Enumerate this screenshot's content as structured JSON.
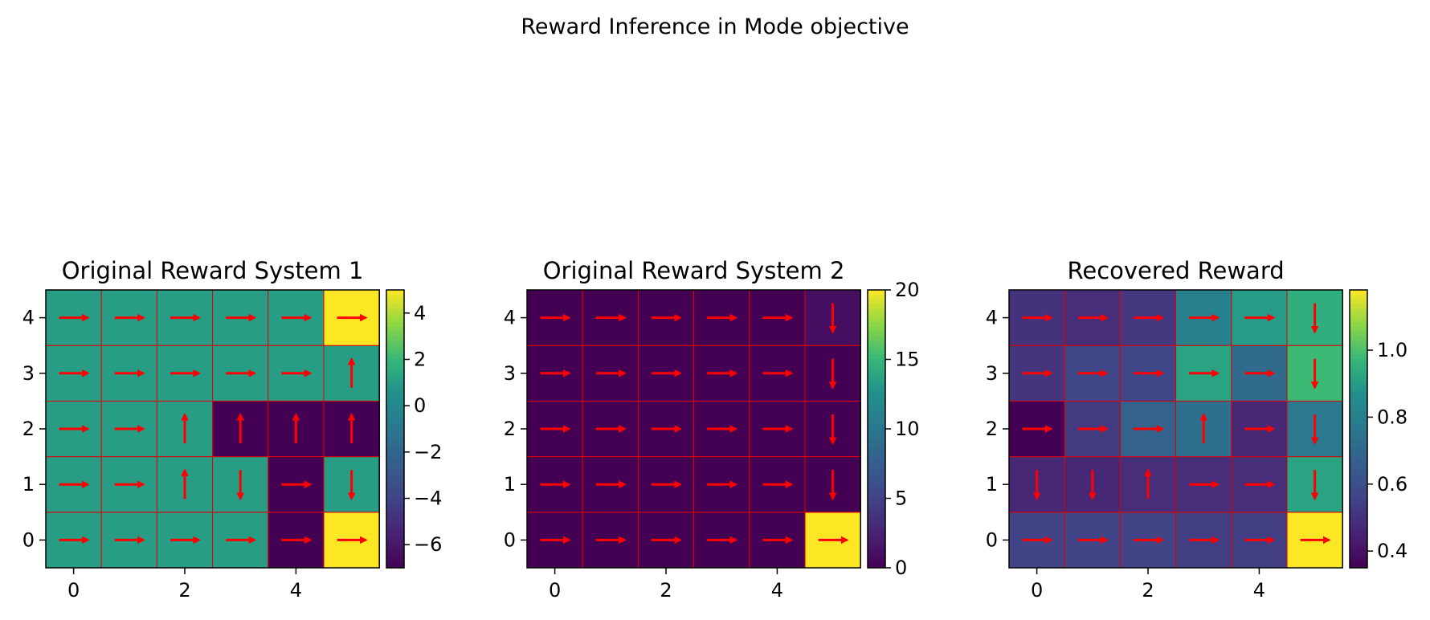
{
  "figure": {
    "suptitle": "Reward Inference in Mode objective"
  },
  "colors": {
    "arrow": "#ff0000",
    "grid_lines": "#e00000",
    "colormap": "viridis"
  },
  "chart_data": [
    {
      "type": "heatmap",
      "title": "Original Reward System 1",
      "x_ticks": [
        0,
        2,
        4
      ],
      "y_ticks": [
        0,
        1,
        2,
        3,
        4
      ],
      "xlim": [
        -0.5,
        5.5
      ],
      "ylim": [
        -0.5,
        4.5
      ],
      "rows": 5,
      "cols": 6,
      "values": [
        [
          1,
          1,
          1,
          1,
          -7,
          5
        ],
        [
          1,
          1,
          1,
          1,
          -7,
          1
        ],
        [
          1,
          1,
          1,
          -7,
          -7,
          -7
        ],
        [
          1,
          1,
          1,
          1,
          1,
          1
        ],
        [
          1,
          1,
          1,
          1,
          1,
          5
        ]
      ],
      "policy": [
        [
          "right",
          "right",
          "right",
          "right",
          "right",
          "right"
        ],
        [
          "right",
          "right",
          "up",
          "down",
          "right",
          "down"
        ],
        [
          "right",
          "right",
          "up",
          "up",
          "up",
          "up"
        ],
        [
          "right",
          "right",
          "right",
          "right",
          "right",
          "up"
        ],
        [
          "right",
          "right",
          "right",
          "right",
          "right",
          "right"
        ]
      ],
      "vmin": -7,
      "vmax": 5,
      "colorbar_ticks": [
        4,
        2,
        0,
        -2,
        -4,
        -6
      ],
      "colorbar_tick_labels": [
        "4",
        "2",
        "0",
        "−2",
        "−4",
        "−6"
      ]
    },
    {
      "type": "heatmap",
      "title": "Original Reward System 2",
      "x_ticks": [
        0,
        2,
        4
      ],
      "y_ticks": [
        0,
        1,
        2,
        3,
        4
      ],
      "xlim": [
        -0.5,
        5.5
      ],
      "ylim": [
        -0.5,
        4.5
      ],
      "rows": 5,
      "cols": 6,
      "values": [
        [
          0,
          0,
          0,
          0,
          0,
          20
        ],
        [
          0,
          0,
          0,
          0,
          0,
          0
        ],
        [
          0,
          0,
          0,
          0,
          0,
          0
        ],
        [
          0,
          0,
          0,
          0,
          0,
          0
        ],
        [
          0,
          0,
          0,
          0,
          0,
          1
        ]
      ],
      "policy": [
        [
          "right",
          "right",
          "right",
          "right",
          "right",
          "right"
        ],
        [
          "right",
          "right",
          "right",
          "right",
          "right",
          "down"
        ],
        [
          "right",
          "right",
          "right",
          "right",
          "right",
          "down"
        ],
        [
          "right",
          "right",
          "right",
          "right",
          "right",
          "down"
        ],
        [
          "right",
          "right",
          "right",
          "right",
          "right",
          "down"
        ]
      ],
      "vmin": 0,
      "vmax": 20,
      "colorbar_ticks": [
        20,
        15,
        10,
        5,
        0
      ],
      "colorbar_tick_labels": [
        "20",
        "15",
        "10",
        "5",
        "0"
      ]
    },
    {
      "type": "heatmap",
      "title": "Recovered Reward",
      "x_ticks": [
        0,
        2,
        4
      ],
      "y_ticks": [
        0,
        1,
        2,
        3,
        4
      ],
      "xlim": [
        -0.5,
        5.5
      ],
      "ylim": [
        -0.5,
        4.5
      ],
      "rows": 5,
      "cols": 6,
      "values": [
        [
          0.56,
          0.56,
          0.56,
          0.54,
          0.54,
          1.18
        ],
        [
          0.47,
          0.47,
          0.49,
          0.49,
          0.49,
          0.92
        ],
        [
          0.35,
          0.53,
          0.68,
          0.73,
          0.47,
          0.77
        ],
        [
          0.51,
          0.57,
          0.57,
          0.92,
          0.71,
          0.98
        ],
        [
          0.5,
          0.49,
          0.52,
          0.8,
          0.9,
          0.95
        ]
      ],
      "policy": [
        [
          "right",
          "right",
          "right",
          "right",
          "right",
          "right"
        ],
        [
          "down",
          "down",
          "up",
          "right",
          "right",
          "down"
        ],
        [
          "right",
          "right",
          "right",
          "up",
          "right",
          "down"
        ],
        [
          "right",
          "right",
          "right",
          "right",
          "right",
          "down"
        ],
        [
          "right",
          "right",
          "right",
          "right",
          "right",
          "down"
        ]
      ],
      "vmin": 0.35,
      "vmax": 1.18,
      "colorbar_ticks": [
        1.0,
        0.8,
        0.6,
        0.4
      ],
      "colorbar_tick_labels": [
        "1.0",
        "0.8",
        "0.6",
        "0.4"
      ]
    }
  ]
}
